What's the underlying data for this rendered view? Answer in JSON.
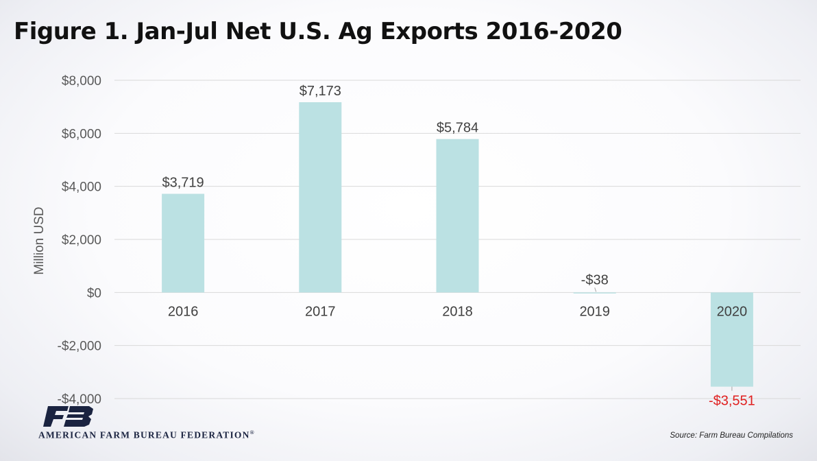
{
  "title": "Figure 1. Jan-Jul Net U.S. Ag Exports 2016-2020",
  "source": "Source: Farm Bureau Compilations",
  "logo": {
    "org_name": "AMERICAN FARM BUREAU FEDERATION",
    "registered_mark": "®",
    "icon": "farm-bureau-logo-mark",
    "color": "#1a2340"
  },
  "colors": {
    "bar": "#bbe1e3",
    "negative_label": "#e01f1f",
    "label": "#404040",
    "grid": "#d9d9d9"
  },
  "chart_data": {
    "type": "bar",
    "title": "Figure 1. Jan-Jul Net U.S. Ag Exports 2016-2020",
    "xlabel": "",
    "ylabel": "Million USD",
    "categories": [
      "2016",
      "2017",
      "2018",
      "2019",
      "2020"
    ],
    "values": [
      3719,
      7173,
      5784,
      -38,
      -3551
    ],
    "data_labels": [
      "$3,719",
      "$7,173",
      "$5,784",
      "-$38",
      "-$3,551"
    ],
    "ylim": [
      -4000,
      8000
    ],
    "yticks": [
      8000,
      6000,
      4000,
      2000,
      0,
      -2000,
      -4000
    ],
    "ytick_labels": [
      "$8,000",
      "$6,000",
      "$4,000",
      "$2,000",
      "$0",
      "-$2,000",
      "-$4,000"
    ],
    "grid": true,
    "legend": "none"
  }
}
